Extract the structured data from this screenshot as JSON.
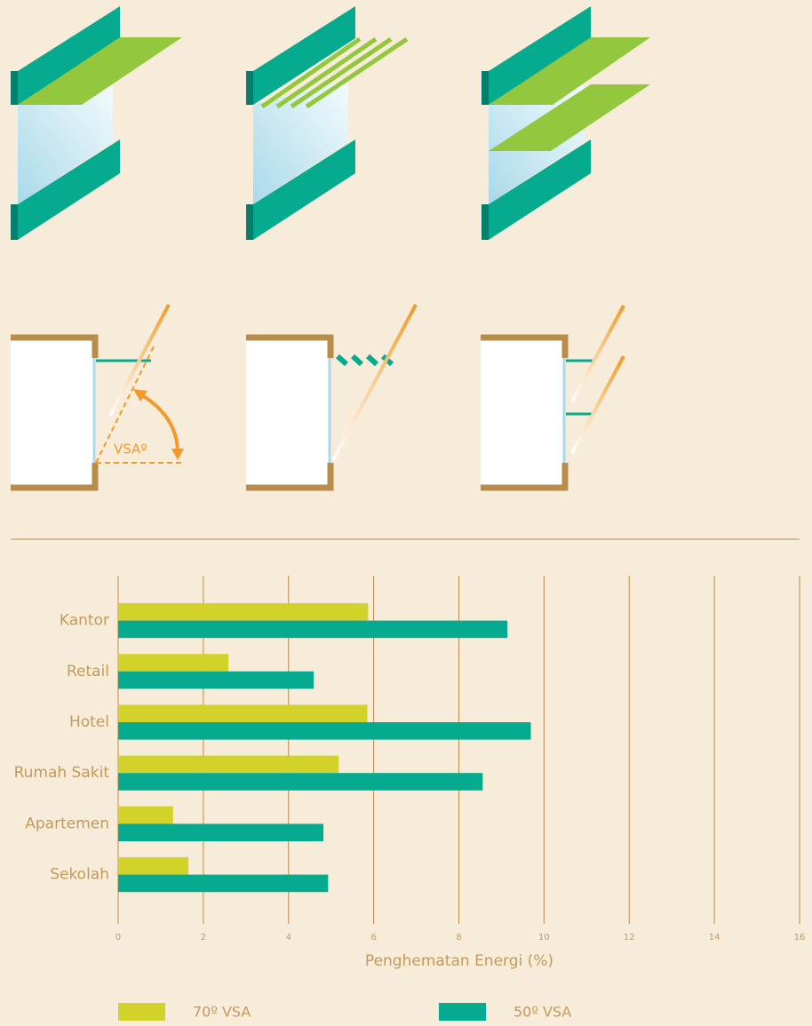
{
  "chart_data": {
    "type": "bar",
    "orientation": "horizontal",
    "annotations": [
      "VSAº"
    ],
    "categories": [
      "Kantor",
      "Retail",
      "Hotel",
      "Rumah Sakit",
      "Apartemen",
      "Sekolah"
    ],
    "series": [
      {
        "name": "70º VSA",
        "color": "#d3d22b",
        "values": [
          5.87,
          2.59,
          5.85,
          5.18,
          1.29,
          1.65
        ]
      },
      {
        "name": "50º VSA",
        "color": "#05aa8f",
        "values": [
          9.14,
          4.59,
          9.69,
          8.56,
          4.82,
          4.93
        ]
      }
    ],
    "xlabel": "Penghematan Energi (%)",
    "xlim": [
      0,
      16
    ],
    "xticks": [
      0,
      2,
      4,
      6,
      8,
      10,
      12,
      14,
      16
    ],
    "grid": true
  }
}
